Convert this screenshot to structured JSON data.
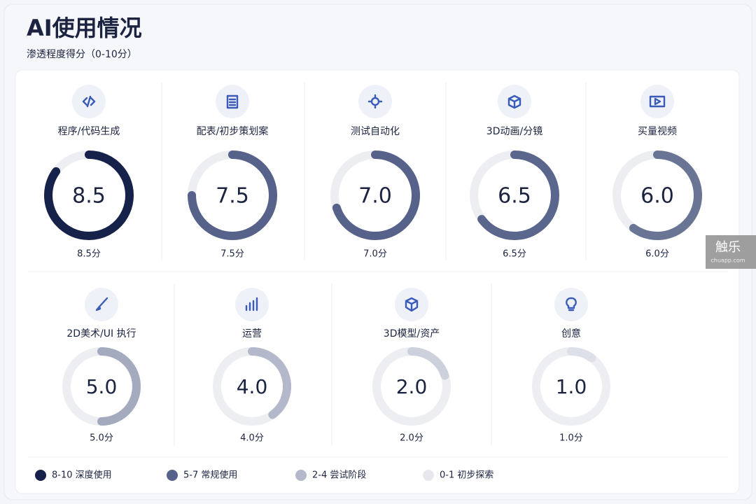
{
  "chart_data": {
    "type": "gauge",
    "title": "AI使用情况",
    "subtitle": "渗透程度得分（0-10分）",
    "ylim": [
      0,
      10
    ],
    "categories": [
      "程序/代码生成",
      "配表/初步策划案",
      "测试自动化",
      "3D动画/分镜",
      "买量视频",
      "2D美术/UI 执行",
      "运营",
      "3D模型/资产",
      "创意"
    ],
    "values": [
      8.5,
      7.5,
      7.0,
      6.5,
      6.0,
      5.0,
      4.0,
      2.0,
      1.0
    ],
    "value_labels": [
      "8.5",
      "7.5",
      "7.0",
      "6.5",
      "6.0",
      "5.0",
      "4.0",
      "2.0",
      "1.0"
    ],
    "value_captions": [
      "8.5分",
      "7.5分",
      "7.0分",
      "6.5分",
      "6.0分",
      "5.0分",
      "4.0分",
      "2.0分",
      "1.0分"
    ],
    "colors": [
      "#16224a",
      "#56628a",
      "#56628a",
      "#5a668c",
      "#6a7596",
      "#a4abbf",
      "#b3b9ca",
      "#cdd1dc",
      "#dde0e8"
    ],
    "legend": [
      {
        "label": "8-10 深度使用",
        "color": "#16224a"
      },
      {
        "label": "5-7 常规使用",
        "color": "#56628a"
      },
      {
        "label": "2-4 尝试阶段",
        "color": "#b3b9ca"
      },
      {
        "label": "0-1 初步探索",
        "color": "#e6e8ee"
      }
    ],
    "watermark": [
      "触乐",
      "chuapp.com"
    ]
  }
}
